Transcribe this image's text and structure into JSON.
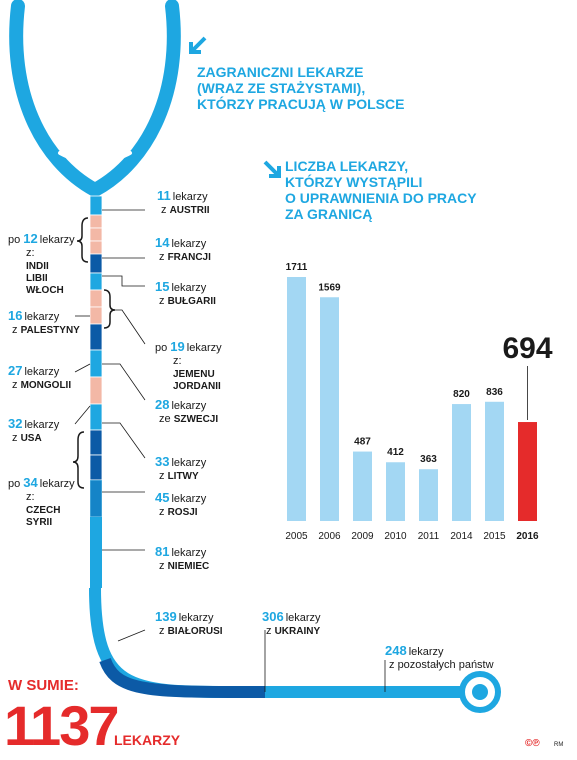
{
  "titles": {
    "left": [
      "ZAGRANICZNI LEKARZE",
      "(WRAZ ZE STAŻYSTAMI),",
      "KTÓRZY PRACUJĄ W POLSCE"
    ],
    "right": [
      "LICZBA LEKARZY,",
      "KTÓRZY WYSTĄPILI",
      "O UPRAWNIENIA DO PRACY",
      "ZA GRANICĄ"
    ]
  },
  "colors": {
    "accent": "#1ea7e1",
    "light_bar": "#a3d7f3",
    "highlight_bar": "#e52b2b",
    "dark_blue": "#0c5aa6",
    "pink": "#f3b8a6"
  },
  "unit_word": "lekarzy",
  "origins": [
    {
      "value": "11",
      "prefix": "",
      "label": "z",
      "countries": [
        "AUSTRII"
      ]
    },
    {
      "value": "12",
      "prefix": "po",
      "label": "z:",
      "countries": [
        "INDII",
        "LIBII",
        "WŁOCH"
      ]
    },
    {
      "value": "14",
      "prefix": "",
      "label": "z",
      "countries": [
        "FRANCJI"
      ]
    },
    {
      "value": "15",
      "prefix": "",
      "label": "z",
      "countries": [
        "BUŁGARII"
      ]
    },
    {
      "value": "16",
      "prefix": "",
      "label": "z",
      "countries": [
        "PALESTYNY"
      ]
    },
    {
      "value": "19",
      "prefix": "po",
      "label": "z:",
      "countries": [
        "JEMENU",
        "JORDANII"
      ]
    },
    {
      "value": "27",
      "prefix": "",
      "label": "z",
      "countries": [
        "MONGOLII"
      ]
    },
    {
      "value": "28",
      "prefix": "",
      "label": "ze",
      "countries": [
        "SZWECJI"
      ]
    },
    {
      "value": "32",
      "prefix": "",
      "label": "z",
      "countries": [
        "USA"
      ]
    },
    {
      "value": "33",
      "prefix": "",
      "label": "z",
      "countries": [
        "LITWY"
      ]
    },
    {
      "value": "34",
      "prefix": "po",
      "label": "z:",
      "countries": [
        "CZECH",
        "SYRII"
      ]
    },
    {
      "value": "45",
      "prefix": "",
      "label": "z",
      "countries": [
        "ROSJI"
      ]
    },
    {
      "value": "81",
      "prefix": "",
      "label": "z",
      "countries": [
        "NIEMIEC"
      ]
    },
    {
      "value": "139",
      "prefix": "",
      "label": "z",
      "countries": [
        "BIAŁORUSI"
      ]
    },
    {
      "value": "306",
      "prefix": "",
      "label": "z",
      "countries": [
        "UKRAINY"
      ]
    },
    {
      "value": "248",
      "prefix": "",
      "label": "z",
      "countries": [
        "pozostałych państw"
      ]
    }
  ],
  "total": {
    "label": "W SUMIE:",
    "value": "1137",
    "unit": "LEKARZY"
  },
  "credit": {
    "logo": "©℗",
    "initials": "RM"
  },
  "chart_data": {
    "type": "bar",
    "title": "LICZBA LEKARZY, KTÓRZY WYSTĄPILI O UPRAWNIENIA DO PRACY ZA GRANICĄ",
    "categories": [
      "2005",
      "2006",
      "2009",
      "2010",
      "2011",
      "2014",
      "2015",
      "2016"
    ],
    "values": [
      1711,
      1569,
      487,
      412,
      363,
      820,
      836,
      694
    ],
    "highlight_index": 7,
    "ylim": [
      0,
      1711
    ],
    "grid": false
  }
}
